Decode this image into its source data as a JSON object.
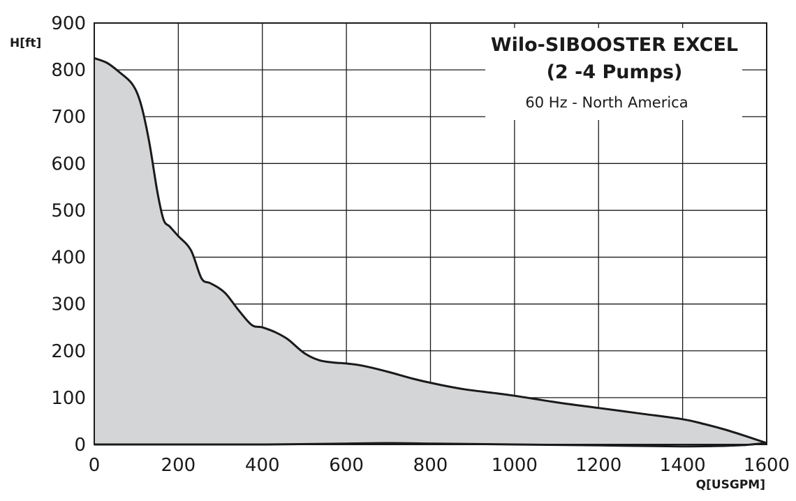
{
  "chart_data": {
    "type": "area",
    "title": "Wilo-SIBOOSTER EXCEL",
    "title_line2": "(2 -4 Pumps)",
    "subtitle": "60 Hz - North America",
    "xlabel": "Q[USGPM]",
    "ylabel": "H[ft]",
    "xlim": [
      0,
      1600
    ],
    "ylim": [
      0,
      900
    ],
    "x_ticks": [
      "0",
      "200",
      "400",
      "600",
      "800",
      "1000",
      "1200",
      "1400",
      "1600"
    ],
    "y_ticks": [
      "0",
      "100",
      "200",
      "300",
      "400",
      "500",
      "600",
      "700",
      "800",
      "900"
    ],
    "x_gridlines": [
      0,
      200,
      400,
      600,
      800,
      1000,
      1200,
      1400,
      1600
    ],
    "y_gridlines": [
      0,
      100,
      200,
      300,
      400,
      500,
      600,
      700,
      800,
      900
    ],
    "grid": true,
    "fill_color": "#d4d5d7",
    "line_color": "#1a1a1a",
    "upper_curve": {
      "x": [
        0,
        30,
        60,
        90,
        110,
        130,
        150,
        165,
        180,
        200,
        230,
        255,
        275,
        295,
        315,
        345,
        375,
        400,
        430,
        460,
        500,
        535,
        570,
        600,
        640,
        700,
        760,
        820,
        880,
        950,
        1000,
        1100,
        1200,
        1300,
        1400,
        1450,
        1500,
        1550,
        1600
      ],
      "y": [
        825,
        815,
        795,
        770,
        730,
        650,
        540,
        480,
        465,
        445,
        415,
        355,
        345,
        335,
        320,
        285,
        255,
        250,
        240,
        225,
        195,
        180,
        175,
        173,
        168,
        155,
        140,
        128,
        118,
        110,
        104,
        90,
        78,
        66,
        54,
        44,
        32,
        18,
        3
      ]
    },
    "lower_curve": {
      "x": [
        0,
        200,
        400,
        600,
        700,
        800,
        1000,
        1200,
        1400,
        1500,
        1550,
        1600
      ],
      "y": [
        0,
        0,
        0,
        2,
        3,
        2,
        0,
        -2,
        -4,
        -3,
        -1,
        3
      ]
    }
  }
}
